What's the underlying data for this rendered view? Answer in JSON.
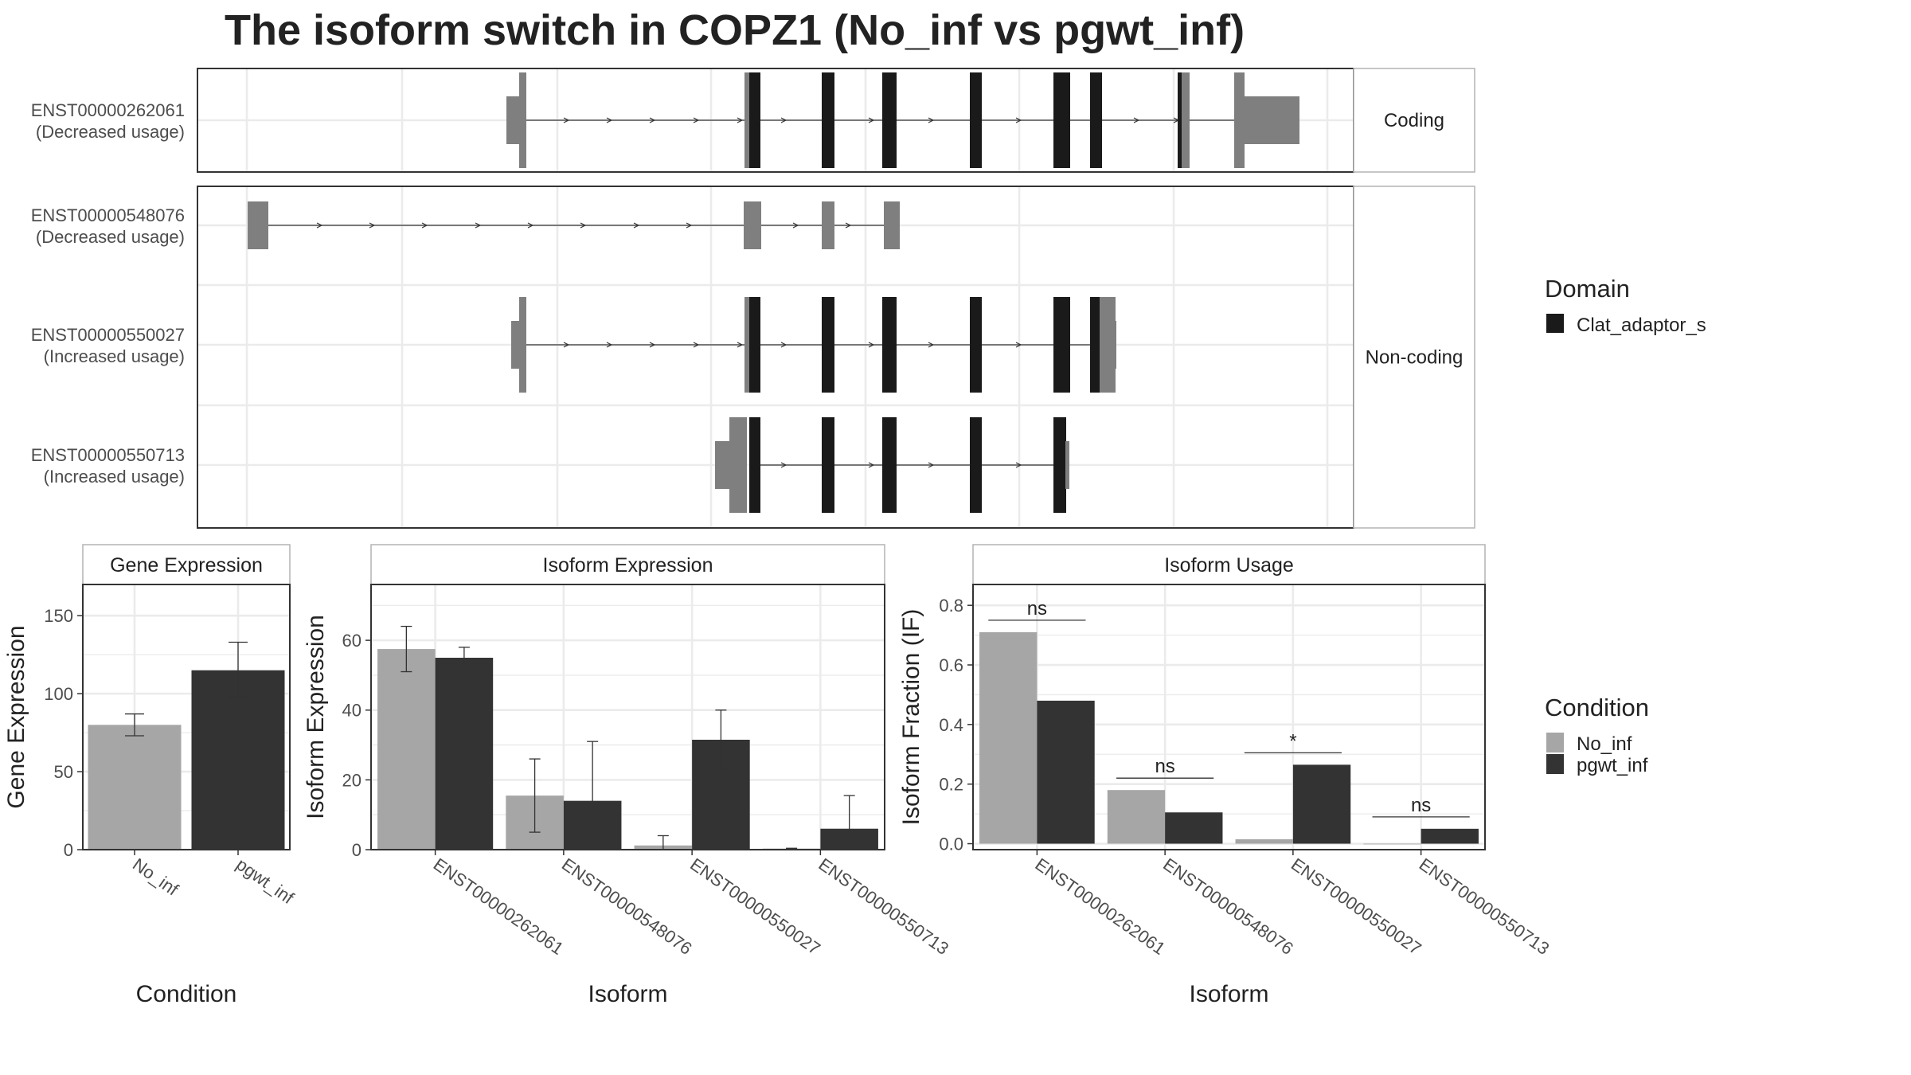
{
  "chart_data": [
    {
      "type": "gene-structure",
      "title": "The isoform switch in COPZ1 (No_inf vs pgwt_inf)",
      "facets": [
        "Coding",
        "Non-coding"
      ],
      "isoforms": [
        {
          "id": "ENST00000262061",
          "status": "(Decreased usage)",
          "facet": "Coding"
        },
        {
          "id": "ENST00000548076",
          "status": "(Decreased usage)",
          "facet": "Non-coding"
        },
        {
          "id": "ENST00000550027",
          "status": "(Increased usage)",
          "facet": "Non-coding"
        },
        {
          "id": "ENST00000550713",
          "status": "(Increased usage)",
          "facet": "Non-coding"
        }
      ],
      "legend": {
        "title": "Domain",
        "entries": [
          {
            "name": "Clat_adaptor_s",
            "color": "#1a1a1a"
          }
        ]
      },
      "colors": {
        "utr": "#7f7f7f",
        "domain": "#1a1a1a"
      }
    },
    {
      "type": "bar",
      "panel_title": "Gene Expression",
      "xlabel": "Condition",
      "ylabel": "Gene Expression",
      "ylim": [
        0,
        170
      ],
      "yticks": [
        0,
        50,
        100,
        150
      ],
      "categories": [
        "No_inf",
        "pgwt_inf"
      ],
      "values": [
        80,
        115
      ],
      "errors": [
        [
          73,
          87
        ],
        [
          98,
          133
        ]
      ],
      "colors": [
        "#a6a6a6",
        "#333333"
      ]
    },
    {
      "type": "bar",
      "panel_title": "Isoform Expression",
      "xlabel": "Isoform",
      "ylabel": "Isoform Expression",
      "ylim": [
        0,
        76
      ],
      "yticks": [
        0,
        20,
        40,
        60
      ],
      "categories": [
        "ENST00000262061",
        "ENST00000548076",
        "ENST00000550027",
        "ENST00000550713"
      ],
      "series": [
        {
          "name": "No_inf",
          "values": [
            57.5,
            15.5,
            1.2,
            0.3
          ],
          "errors": [
            [
              51,
              64
            ],
            [
              5,
              26
            ],
            [
              0,
              4
            ],
            [
              0.2,
              0.4
            ]
          ]
        },
        {
          "name": "pgwt_inf",
          "values": [
            55,
            14,
            31.5,
            6
          ],
          "errors": [
            [
              52,
              58
            ],
            [
              0,
              31
            ],
            [
              23,
              40
            ],
            [
              0,
              15.5
            ]
          ]
        }
      ]
    },
    {
      "type": "bar",
      "panel_title": "Isoform Usage",
      "xlabel": "Isoform",
      "ylabel": "Isoform Fraction (IF)",
      "ylim": [
        -0.02,
        0.87
      ],
      "yticks": [
        "0.0",
        "0.2",
        "0.4",
        "0.6",
        "0.8"
      ],
      "categories": [
        "ENST00000262061",
        "ENST00000548076",
        "ENST00000550027",
        "ENST00000550713"
      ],
      "series": [
        {
          "name": "No_inf",
          "values": [
            0.71,
            0.18,
            0.015,
            0.0
          ]
        },
        {
          "name": "pgwt_inf",
          "values": [
            0.48,
            0.105,
            0.265,
            0.05
          ]
        }
      ],
      "significance": [
        {
          "label": "ns",
          "y": 0.75
        },
        {
          "label": "ns",
          "y": 0.22
        },
        {
          "label": "*",
          "y": 0.305
        },
        {
          "label": "ns",
          "y": 0.09
        }
      ]
    }
  ],
  "legend_condition": {
    "title": "Condition",
    "entries": [
      {
        "name": "No_inf",
        "color": "#a6a6a6"
      },
      {
        "name": "pgwt_inf",
        "color": "#333333"
      }
    ]
  }
}
